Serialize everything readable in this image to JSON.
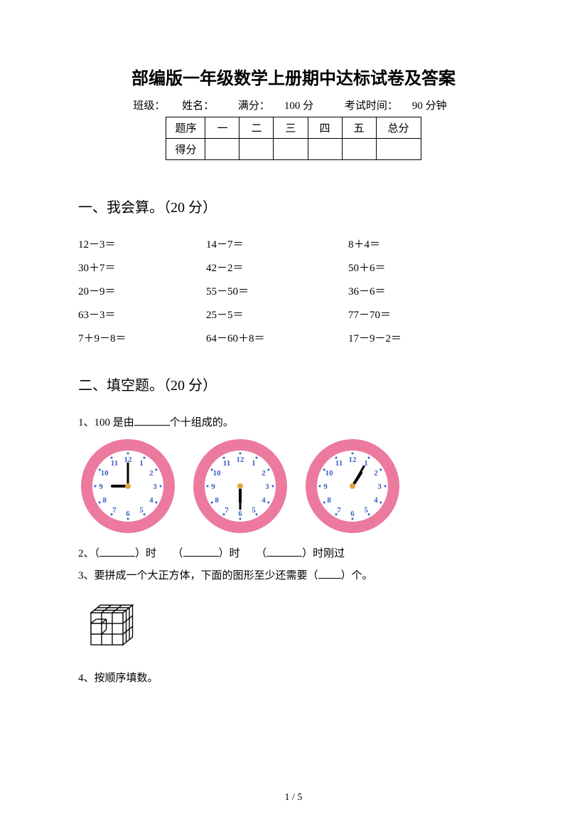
{
  "title": "部编版一年级数学上册期中达标试卷及答案",
  "info": {
    "class_label": "班级：",
    "name_label": "姓名：",
    "full_score_label": "满分：",
    "full_score_value": "100 分",
    "time_label": "考试时间：",
    "time_value": "90 分钟"
  },
  "score_table": {
    "headers": [
      "题序",
      "一",
      "二",
      "三",
      "四",
      "五",
      "总分"
    ],
    "row2_label": "得分"
  },
  "section1": {
    "title": "一、我会算。（20 分）",
    "problems": [
      "12－3＝",
      "14－7＝",
      "8＋4＝",
      "30＋7＝",
      "42－2＝",
      "50＋6＝",
      "20－9＝",
      "55－50＝",
      "36－6＝",
      "63－3＝",
      "25－5＝",
      "77－70＝",
      "7＋9－8＝",
      "64－60＋8＝",
      "17－9－2＝"
    ]
  },
  "section2": {
    "title": "二、填空题。（20 分）",
    "q1_prefix": "1、100 是由",
    "q1_suffix": "个十组成的。",
    "clocks": [
      {
        "hour_angle": 270,
        "minute_angle": 0
      },
      {
        "hour_angle": 180,
        "minute_angle": 180
      },
      {
        "hour_angle": 33,
        "minute_angle": 30
      }
    ],
    "clock_numbers": [
      "12",
      "1",
      "2",
      "3",
      "4",
      "5",
      "6",
      "7",
      "8",
      "9",
      "10",
      "11"
    ],
    "clock_label_1": "）时",
    "clock_label_2": "）时",
    "clock_label_3": "）时刚过",
    "q2_prefix": "2、（",
    "q2_mid": "（",
    "q3": "3、要拼成一个大正方体，下面的图形至少还需要（",
    "q3_suffix": "）个。",
    "q4": "4、按顺序填数。"
  },
  "colors": {
    "clock_ring": "#ec7a9f",
    "clock_face": "#ffffff",
    "clock_num": "#3a5fc8",
    "clock_center": "#e8a43a"
  },
  "page": "1 / 5"
}
